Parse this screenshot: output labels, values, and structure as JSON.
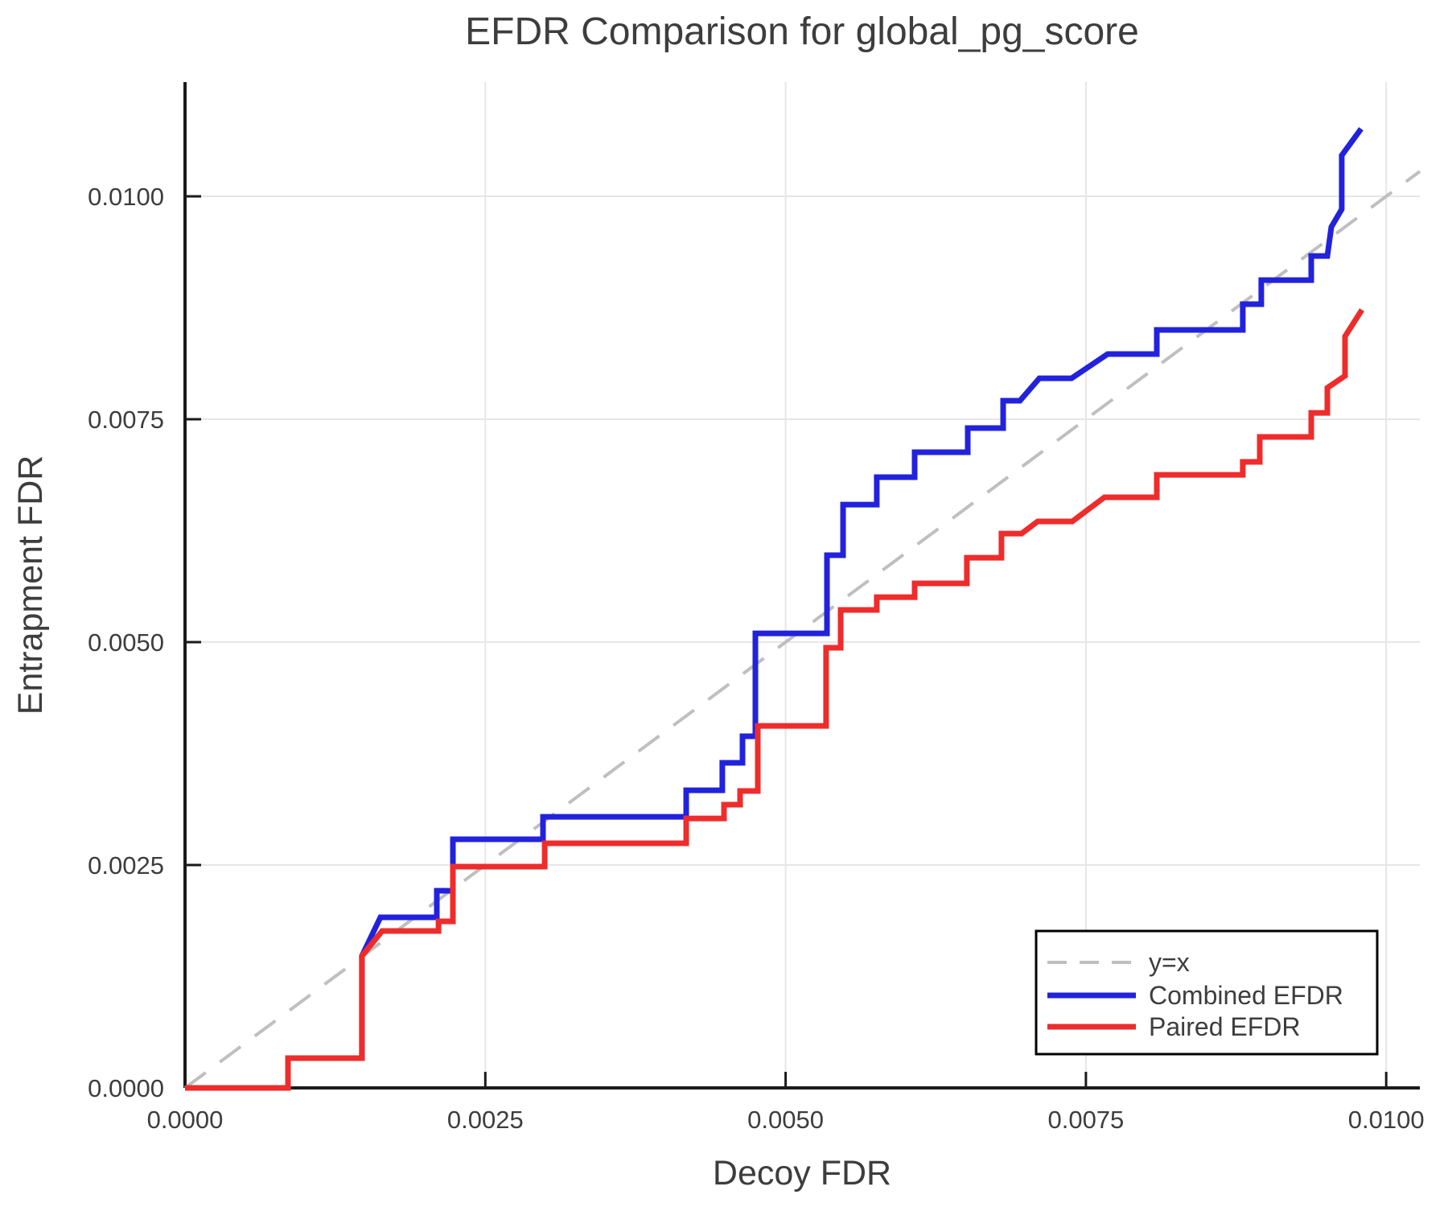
{
  "title": "EFDR Comparison for global_pg_score",
  "colors": {
    "background": "#ffffff",
    "axis": "#1a1a1a",
    "grid": "#e6e6e6",
    "text": "#3d3d3d",
    "identity_line": "#bfbfbf",
    "combined": "#2222dd",
    "paired": "#ee2c2c"
  },
  "chart_data": {
    "type": "line",
    "title": "EFDR Comparison for global_pg_score",
    "xlabel": "Decoy FDR",
    "ylabel": "Entrapment FDR",
    "xlim": [
      0,
      0.01028
    ],
    "ylim": [
      0,
      0.011282
    ],
    "grid": true,
    "xticks": {
      "values": [
        0,
        0.0025,
        0.005,
        0.0075,
        0.01
      ],
      "labels": [
        "0.0000",
        "0.0025",
        "0.0050",
        "0.0075",
        "0.0100"
      ]
    },
    "yticks": {
      "values": [
        0,
        0.0025,
        0.005,
        0.0075,
        0.01
      ],
      "labels": [
        "0.0000",
        "0.0025",
        "0.0050",
        "0.0075",
        "0.0100"
      ]
    },
    "legend": {
      "position": "bottom-right",
      "border": true
    },
    "series": [
      {
        "name": "y=x",
        "style": "dashed",
        "color": "#bfbfbf",
        "width": 4,
        "points": [
          [
            0,
            0
          ],
          [
            0.01028,
            0.01028
          ]
        ]
      },
      {
        "name": "Combined EFDR",
        "style": "solid",
        "color": "#2222dd",
        "width": 7,
        "points": [
          [
            0.0,
            0.0
          ],
          [
            0.000857,
            0.0
          ],
          [
            0.000857,
            0.000334
          ],
          [
            0.001473,
            0.000334
          ],
          [
            0.001473,
            0.00148
          ],
          [
            0.001627,
            0.001913
          ],
          [
            0.002096,
            0.001913
          ],
          [
            0.002096,
            0.002211
          ],
          [
            0.00223,
            0.002211
          ],
          [
            0.00223,
            0.002789
          ],
          [
            0.00298,
            0.002789
          ],
          [
            0.00298,
            0.003041
          ],
          [
            0.004172,
            0.003041
          ],
          [
            0.004172,
            0.003339
          ],
          [
            0.004473,
            0.003339
          ],
          [
            0.004473,
            0.003646
          ],
          [
            0.004641,
            0.003646
          ],
          [
            0.004641,
            0.003944
          ],
          [
            0.004748,
            0.003944
          ],
          [
            0.004748,
            0.005099
          ],
          [
            0.005344,
            0.005099
          ],
          [
            0.005344,
            0.005975
          ],
          [
            0.005478,
            0.005975
          ],
          [
            0.005478,
            0.006543
          ],
          [
            0.005759,
            0.006543
          ],
          [
            0.005759,
            0.00685
          ],
          [
            0.006074,
            0.00685
          ],
          [
            0.006074,
            0.00713
          ],
          [
            0.006516,
            0.00713
          ],
          [
            0.006516,
            0.007401
          ],
          [
            0.006811,
            0.007401
          ],
          [
            0.006811,
            0.007708
          ],
          [
            0.006951,
            0.007708
          ],
          [
            0.007112,
            0.00796
          ],
          [
            0.00738,
            0.00796
          ],
          [
            0.007681,
            0.008231
          ],
          [
            0.00809,
            0.008231
          ],
          [
            0.00809,
            0.008502
          ],
          [
            0.008806,
            0.008502
          ],
          [
            0.008806,
            0.008791
          ],
          [
            0.00896,
            0.008791
          ],
          [
            0.00896,
            0.009061
          ],
          [
            0.009376,
            0.009061
          ],
          [
            0.009376,
            0.009332
          ],
          [
            0.00951,
            0.009332
          ],
          [
            0.009543,
            0.009657
          ],
          [
            0.00963,
            0.009856
          ],
          [
            0.00963,
            0.01046
          ],
          [
            0.009791,
            0.010758
          ]
        ]
      },
      {
        "name": "Paired EFDR",
        "style": "solid",
        "color": "#ee2c2c",
        "width": 7,
        "points": [
          [
            0.0,
            0.0
          ],
          [
            0.000857,
            0.0
          ],
          [
            0.000857,
            0.000334
          ],
          [
            0.001473,
            0.000334
          ],
          [
            0.001473,
            0.00148
          ],
          [
            0.001641,
            0.00176
          ],
          [
            0.00211,
            0.00176
          ],
          [
            0.00211,
            0.001868
          ],
          [
            0.00223,
            0.001868
          ],
          [
            0.00223,
            0.002482
          ],
          [
            0.002994,
            0.002482
          ],
          [
            0.002994,
            0.002744
          ],
          [
            0.004172,
            0.002744
          ],
          [
            0.004172,
            0.003023
          ],
          [
            0.004487,
            0.003023
          ],
          [
            0.004487,
            0.003177
          ],
          [
            0.004621,
            0.003177
          ],
          [
            0.004621,
            0.00333
          ],
          [
            0.004768,
            0.00333
          ],
          [
            0.004768,
            0.004061
          ],
          [
            0.005337,
            0.004061
          ],
          [
            0.005337,
            0.004937
          ],
          [
            0.005458,
            0.004937
          ],
          [
            0.005458,
            0.005361
          ],
          [
            0.005759,
            0.005361
          ],
          [
            0.005759,
            0.005505
          ],
          [
            0.006074,
            0.005505
          ],
          [
            0.006074,
            0.005659
          ],
          [
            0.006509,
            0.005659
          ],
          [
            0.006509,
            0.005947
          ],
          [
            0.006797,
            0.005947
          ],
          [
            0.006797,
            0.006218
          ],
          [
            0.006964,
            0.006218
          ],
          [
            0.007098,
            0.006354
          ],
          [
            0.007386,
            0.006354
          ],
          [
            0.007654,
            0.006625
          ],
          [
            0.00809,
            0.006625
          ],
          [
            0.00809,
            0.006877
          ],
          [
            0.008806,
            0.006877
          ],
          [
            0.008806,
            0.007022
          ],
          [
            0.008947,
            0.007022
          ],
          [
            0.008947,
            0.007302
          ],
          [
            0.009376,
            0.007302
          ],
          [
            0.009376,
            0.007572
          ],
          [
            0.00951,
            0.007572
          ],
          [
            0.00951,
            0.007852
          ],
          [
            0.009657,
            0.007988
          ],
          [
            0.009657,
            0.00843
          ],
          [
            0.009798,
            0.008728
          ]
        ]
      }
    ]
  }
}
